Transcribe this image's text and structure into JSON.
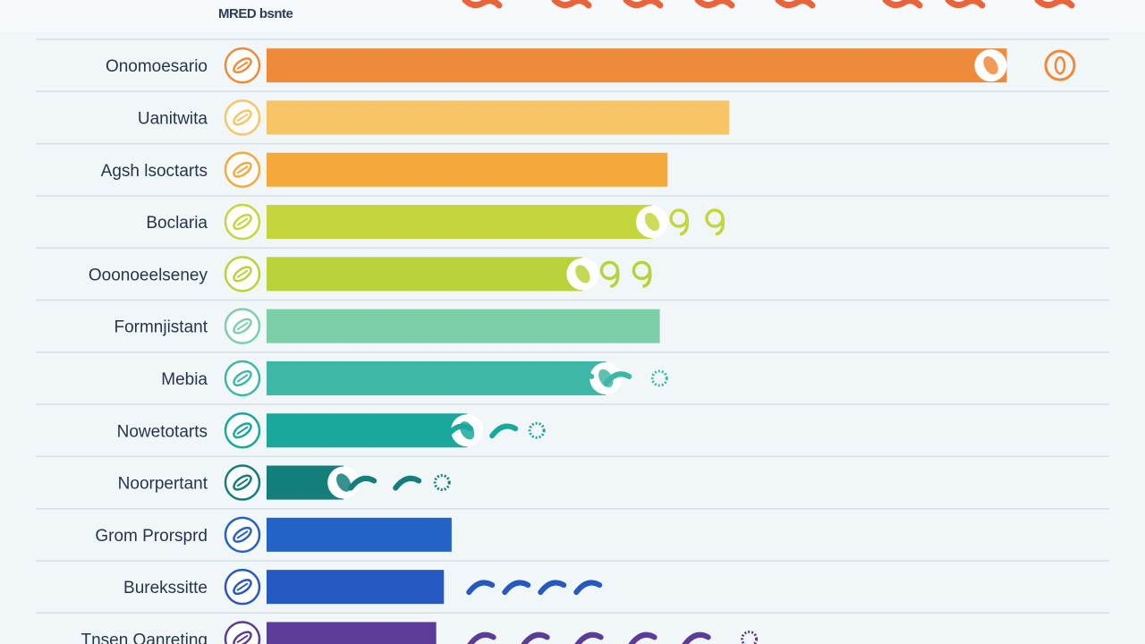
{
  "chart_data": {
    "type": "bar",
    "orientation": "horizontal",
    "title": "MRED bsnte",
    "xlabel": "",
    "ylabel": "",
    "xlim": [
      0,
      100
    ],
    "grid": true,
    "legend": "none",
    "categories": [
      "Onomoesario",
      "Uanitwita",
      "Agsh lsoctarts",
      "Boclaria",
      "Ooonoeelseney",
      "Formnjistant",
      "Mebia",
      "Nowetotarts",
      "Noorpertant",
      "Grom Prorsprd",
      "Burekssitte",
      "Tnsen Oanreting"
    ],
    "values": [
      96,
      60,
      52,
      50,
      41,
      51,
      44,
      26,
      10,
      24,
      23,
      22
    ],
    "colors": [
      "#ef8a3a",
      "#f7c466",
      "#f5a93b",
      "#c4d63b",
      "#b9d23a",
      "#7dcfa8",
      "#3fb7a8",
      "#1ba89c",
      "#147e7b",
      "#2362c7",
      "#2559c2",
      "#5b3c98"
    ],
    "icons": [
      "microbe-icon",
      "bacteria-icon",
      "cocci-icon",
      "bacteria-icon",
      "bacteria-icon",
      "bacteria-icon",
      "bacillus-icon",
      "bacteria-icon",
      "bacteria-icon",
      "cell-icon",
      "bacillus-icon",
      "bacillus-icon"
    ]
  }
}
